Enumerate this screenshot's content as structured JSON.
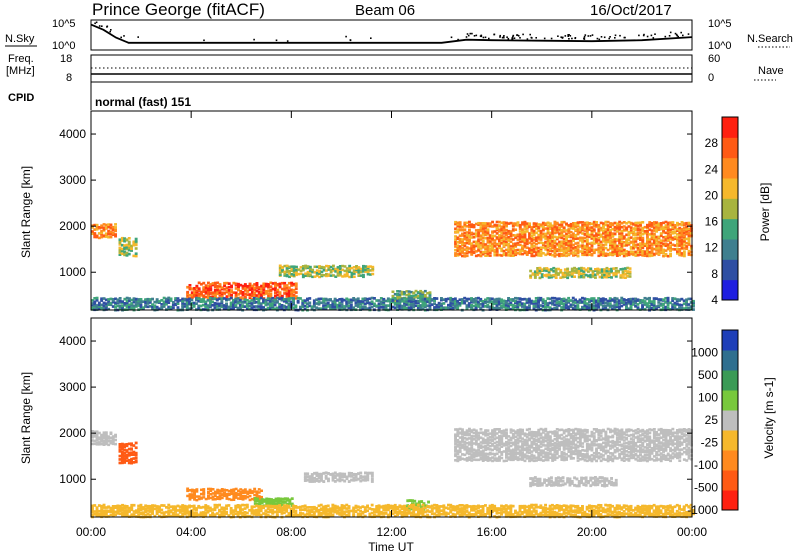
{
  "header": {
    "station": "Prince George (fitACF)",
    "beam": "Beam 06",
    "date": "16/Oct/2017"
  },
  "left_labels": {
    "nsky": "N.Sky",
    "freq_line1": "Freq.",
    "freq_line2": "[MHz]",
    "cpid": "CPID"
  },
  "right_labels": {
    "nsearch": "N.Search",
    "nave": "Nave"
  },
  "cpid_text": "normal (fast) 151",
  "colors": {
    "power": [
      "#1f1fe0",
      "#2f4fa3",
      "#3f7f8f",
      "#3fa57a",
      "#a8b43f",
      "#f5b82c",
      "#ff8a1f",
      "#ff5a14",
      "#ff2010"
    ],
    "velocity_pos": [
      "#1f3fb8",
      "#2f6f8f",
      "#3a9a55",
      "#78c83c"
    ],
    "velocity_zero": "#bebebe",
    "velocity_neg": [
      "#f5b82c",
      "#ff8a1f",
      "#ff5a14",
      "#ff2010"
    ]
  },
  "chart_data": [
    {
      "type": "line",
      "name": "noise",
      "y_ticks": [
        "10^5",
        "10^0"
      ],
      "right_ticks": [
        "10^5",
        "10^0"
      ],
      "series": [
        {
          "name": "N.Sky",
          "x": [
            0,
            0.5,
            1,
            1.5,
            2,
            4,
            8,
            12,
            14,
            15,
            16,
            18,
            20,
            22,
            24
          ],
          "y": [
            4.5,
            3.5,
            2.0,
            1.0,
            1.0,
            1.0,
            1.0,
            1.0,
            1.0,
            1.6,
            1.5,
            1.4,
            1.3,
            1.5,
            2.1
          ]
        },
        {
          "name": "N.Search",
          "x": [
            0,
            0.5,
            1,
            1.5,
            2,
            4,
            8,
            12,
            14,
            15,
            16,
            18,
            20,
            22,
            24
          ],
          "y": [
            4.5,
            3.5,
            2.0,
            1.0,
            1.0,
            1.0,
            1.0,
            1.0,
            1.0,
            1.6,
            1.5,
            1.4,
            1.3,
            1.5,
            2.1
          ]
        }
      ]
    },
    {
      "type": "line",
      "name": "frequency-nave",
      "left_ticks": [
        "18",
        "8"
      ],
      "right_ticks": [
        "60",
        "0"
      ],
      "series": [
        {
          "name": "Freq. [MHz]",
          "x": [
            0,
            24
          ],
          "y": [
            10.5,
            10.5
          ]
        },
        {
          "name": "Nave",
          "x": [
            0,
            24
          ],
          "y": [
            13,
            13
          ]
        }
      ]
    },
    {
      "type": "heatmap",
      "title": "Power",
      "ylabel": "Slant Range [km]",
      "colorbar_label": "Power [dB]",
      "colorbar_ticks": [
        "28",
        "24",
        "20",
        "16",
        "12",
        "8",
        "4"
      ],
      "y_ticks": [
        "4000",
        "3000",
        "2000",
        "1000"
      ],
      "xlim": [
        0,
        24
      ],
      "ylim": [
        180,
        4500
      ],
      "patches": [
        {
          "t": [
            0.0,
            1.0
          ],
          "r": [
            1750,
            2050
          ],
          "level": 6
        },
        {
          "t": [
            1.1,
            1.8
          ],
          "r": [
            1350,
            1750
          ],
          "level": 4
        },
        {
          "t": [
            3.8,
            8.2
          ],
          "r": [
            420,
            780
          ],
          "level": 7
        },
        {
          "t": [
            7.5,
            11.2
          ],
          "r": [
            900,
            1150
          ],
          "level": 4
        },
        {
          "t": [
            12.0,
            13.5
          ],
          "r": [
            350,
            600
          ],
          "level": 3
        },
        {
          "t": [
            14.5,
            24.0
          ],
          "r": [
            1350,
            2100
          ],
          "level": 6
        },
        {
          "t": [
            17.5,
            21.5
          ],
          "r": [
            880,
            1100
          ],
          "level": 4
        },
        {
          "t": [
            0.0,
            24.0
          ],
          "r": [
            180,
            450
          ],
          "level": 2
        }
      ]
    },
    {
      "type": "heatmap",
      "title": "Velocity",
      "ylabel": "Slant Range [km]",
      "colorbar_label": "Velocity [m s-1]",
      "colorbar_ticks": [
        "1000",
        "500",
        "100",
        "25",
        "-25",
        "-100",
        "-500",
        "-1000"
      ],
      "y_ticks": [
        "4000",
        "3000",
        "2000",
        "1000"
      ],
      "xlim": [
        0,
        24
      ],
      "ylim": [
        180,
        4500
      ],
      "patches": [
        {
          "t": [
            0.0,
            1.0
          ],
          "r": [
            1750,
            2050
          ],
          "v": 0
        },
        {
          "t": [
            1.1,
            1.8
          ],
          "r": [
            1350,
            1800
          ],
          "v": -700
        },
        {
          "t": [
            3.8,
            6.8
          ],
          "r": [
            550,
            800
          ],
          "v": -400
        },
        {
          "t": [
            6.5,
            8.0
          ],
          "r": [
            420,
            600
          ],
          "v": 80
        },
        {
          "t": [
            8.5,
            11.2
          ],
          "r": [
            950,
            1150
          ],
          "v": 0
        },
        {
          "t": [
            12.5,
            13.5
          ],
          "r": [
            350,
            550
          ],
          "v": 80
        },
        {
          "t": [
            14.5,
            24.0
          ],
          "r": [
            1400,
            2100
          ],
          "v": 0
        },
        {
          "t": [
            17.5,
            21.0
          ],
          "r": [
            850,
            1050
          ],
          "v": 0
        },
        {
          "t": [
            0.0,
            24.0
          ],
          "r": [
            180,
            450
          ],
          "v": -60
        }
      ]
    }
  ],
  "x_axis": {
    "ticks": [
      "00:00",
      "04:00",
      "08:00",
      "12:00",
      "16:00",
      "20:00",
      "00:00"
    ],
    "label": "Time UT"
  }
}
